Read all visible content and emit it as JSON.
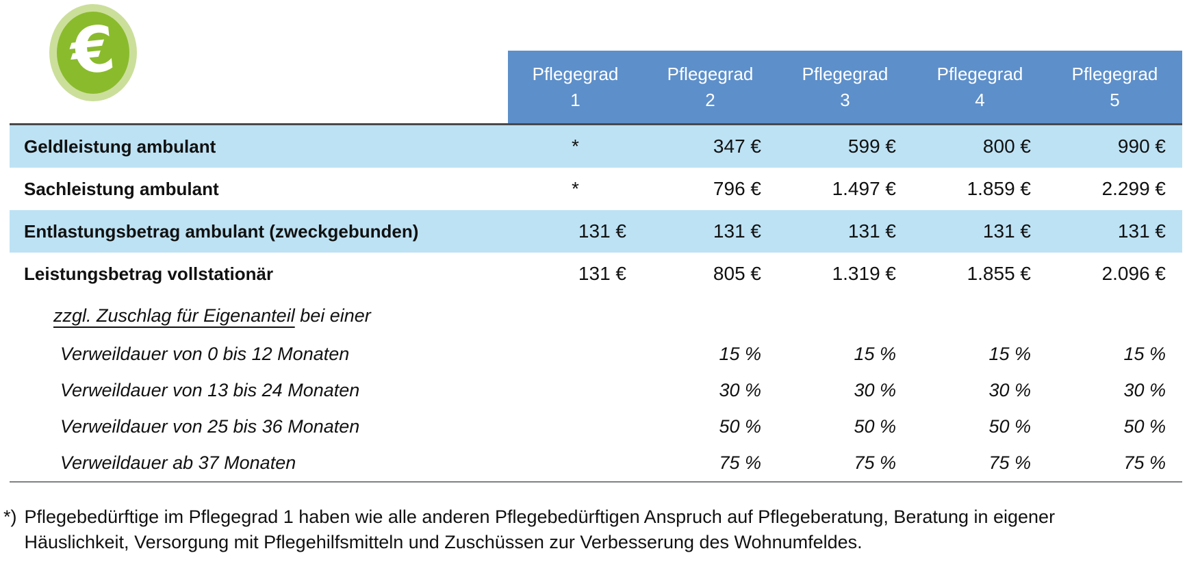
{
  "icon": {
    "symbol": "€",
    "name": "euro-coin",
    "inner_color": "#8abb2d",
    "ring_color": "#cbdf9b"
  },
  "colors": {
    "header_blue": "#5d8fca",
    "row_highlight_blue": "#bde2f4",
    "top_rule": "#48484b",
    "bottom_rule": "#7e8084"
  },
  "table": {
    "columns": [
      {
        "line1": "Pflegegrad",
        "line2": "1"
      },
      {
        "line1": "Pflegegrad",
        "line2": "2"
      },
      {
        "line1": "Pflegegrad",
        "line2": "3"
      },
      {
        "line1": "Pflegegrad",
        "line2": "4"
      },
      {
        "line1": "Pflegegrad",
        "line2": "5"
      }
    ],
    "rows": [
      {
        "label": "Geldleistung ambulant",
        "values": [
          "*",
          "347 €",
          "599 €",
          "800 €",
          "990 €"
        ]
      },
      {
        "label": "Sachleistung ambulant",
        "values": [
          "*",
          "796 €",
          "1.497 €",
          "1.859 €",
          "2.299 €"
        ]
      },
      {
        "label": "Entlastungsbetrag ambulant (zweckgebunden)",
        "values": [
          "131 €",
          "131 €",
          "131 €",
          "131 €",
          "131 €"
        ]
      },
      {
        "label": "Leistungsbetrag vollstationär",
        "values": [
          "131 €",
          "805 €",
          "1.319 €",
          "1.855 €",
          "2.096 €"
        ]
      },
      {
        "label_underlined": "zzgl. Zuschlag für Eigenanteil",
        "label_rest": " bei einer",
        "values": [
          "",
          "",
          "",
          "",
          ""
        ]
      },
      {
        "label": "Verweildauer von 0 bis 12 Monaten",
        "values": [
          "",
          "15 %",
          "15 %",
          "15 %",
          "15 %"
        ]
      },
      {
        "label": "Verweildauer von 13 bis 24 Monaten",
        "values": [
          "",
          "30 %",
          "30 %",
          "30 %",
          "30 %"
        ]
      },
      {
        "label": "Verweildauer von 25 bis 36 Monaten",
        "values": [
          "",
          "50 %",
          "50 %",
          "50 %",
          "50 %"
        ]
      },
      {
        "label": "Verweildauer ab 37 Monaten",
        "values": [
          "",
          "75 %",
          "75 %",
          "75 %",
          "75 %"
        ]
      }
    ]
  },
  "footnote": {
    "marker": "*)",
    "line1": "Pflegebedürftige im Pflegegrad 1 haben wie alle anderen Pflegebedürftigen Anspruch auf Pflegeberatung, Beratung in eigener",
    "line2": "Häuslichkeit, Versorgung mit Pflegehilfsmitteln und Zuschüssen zur Verbesserung des Wohnumfeldes."
  }
}
